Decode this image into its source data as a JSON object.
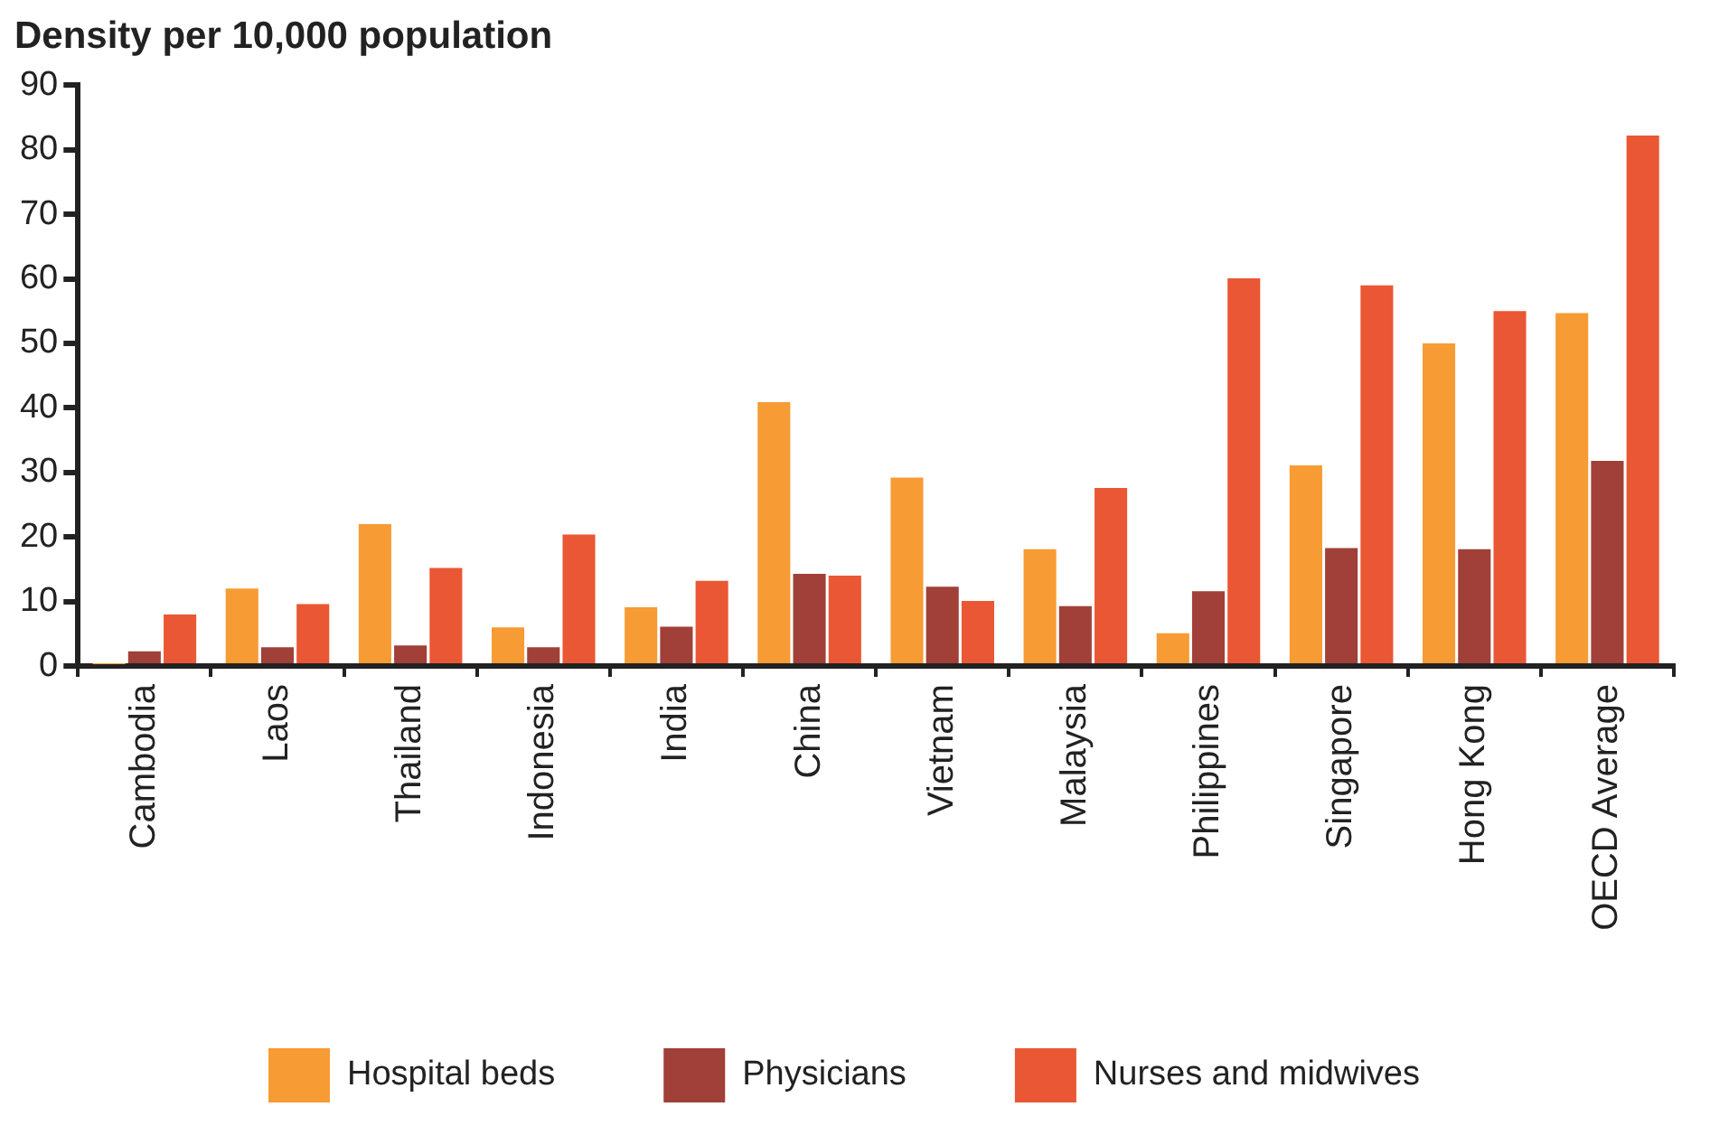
{
  "chart_data": {
    "type": "bar",
    "title": "Density per 10,000 population",
    "categories": [
      "Cambodia",
      "Laos",
      "Thailand",
      "Indonesia",
      "India",
      "China",
      "Vietnam",
      "Malaysia",
      "Philippines",
      "Singapore",
      "Hong Kong",
      "OECD Average"
    ],
    "series": [
      {
        "name": "Hospital beds",
        "color": "#f79b34",
        "values": [
          0.3,
          12,
          22,
          6,
          9.1,
          40.9,
          29.2,
          18.1,
          5.1,
          31.1,
          50,
          54.7
        ]
      },
      {
        "name": "Physicians",
        "color": "#a04038",
        "values": [
          2.3,
          2.9,
          3.2,
          2.9,
          6.1,
          14.3,
          12.3,
          9.3,
          11.6,
          18.3,
          18.1,
          31.8
        ]
      },
      {
        "name": "Nurses and midwives",
        "color": "#ea5734",
        "values": [
          8,
          9.6,
          15.2,
          20.4,
          13.2,
          14,
          10.1,
          27.6,
          60.1,
          59,
          55,
          82.2
        ]
      }
    ],
    "ylim": [
      0,
      90
    ],
    "yticks": [
      0,
      10,
      20,
      30,
      40,
      50,
      60,
      70,
      80,
      90
    ],
    "grid": false,
    "legend": "bottom"
  }
}
